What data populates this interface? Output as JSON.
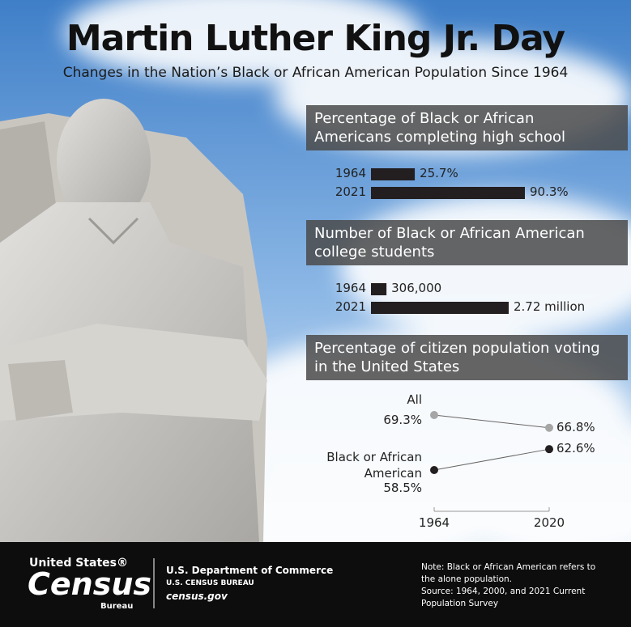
{
  "title": "Martin Luther King Jr. Day",
  "subtitle": "Changes in the Nation’s Black or African American Population Since 1964",
  "chart_data": [
    {
      "type": "bar",
      "title": "Percentage of Black or African Americans completing high school",
      "categories": [
        "1964",
        "2021"
      ],
      "values": [
        25.7,
        90.3
      ],
      "value_labels": [
        "25.7%",
        "90.3%"
      ],
      "color": "#231f20"
    },
    {
      "type": "bar",
      "title": "Number of Black or African American college students",
      "categories": [
        "1964",
        "2021"
      ],
      "values": [
        306000,
        2720000
      ],
      "value_labels": [
        "306,000",
        "2.72 million"
      ],
      "color": "#231f20"
    },
    {
      "type": "line",
      "title": "Percentage of citizen population voting in the United States",
      "categories": [
        "1964",
        "2020"
      ],
      "series": [
        {
          "name": "All",
          "color": "#a6a6a6",
          "values": [
            69.3,
            66.8
          ],
          "value_labels": [
            "69.3%",
            "66.8%"
          ]
        },
        {
          "name": "Black or African American",
          "color": "#231f20",
          "values": [
            58.5,
            62.6
          ],
          "value_labels": [
            "58.5%",
            "62.6%"
          ]
        }
      ]
    }
  ],
  "footer": {
    "logo": [
      "United States®",
      "Census",
      "Bureau"
    ],
    "department": "U.S. Department of Commerce",
    "bureau": "U.S. CENSUS BUREAU",
    "website": "census.gov",
    "note": "Note: Black or African American refers to the alone population.",
    "source": "Source: 1964, 2000, and 2021 Current Population Survey"
  }
}
